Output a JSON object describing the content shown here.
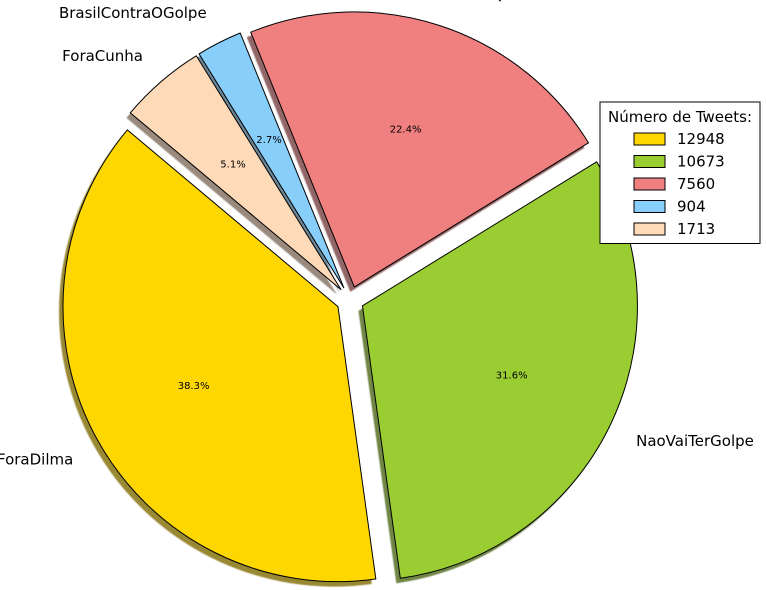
{
  "chart_data": {
    "type": "pie",
    "title": "",
    "start_angle_deg": 140,
    "direction": "counterclockwise",
    "shadow": true,
    "explode": [
      0.05,
      0.05,
      0.05,
      0.05,
      0.05
    ],
    "slices": [
      {
        "label": "ForaDilma",
        "value": 12948,
        "percent_label": "38.3%",
        "color": "#FFD700"
      },
      {
        "label": "NaoVaiTerGolpe",
        "value": 10673,
        "percent_label": "31.6%",
        "color": "#9ACD32"
      },
      {
        "label": "TchauQuerida",
        "value": 7560,
        "percent_label": "22.4%",
        "color": "#F08080"
      },
      {
        "label": "BrasilContraOGolpe",
        "value": 904,
        "percent_label": "2.7%",
        "color": "#87CEFA"
      },
      {
        "label": "ForaCunha",
        "value": 1713,
        "percent_label": "5.1%",
        "color": "#FFDAB9"
      }
    ],
    "legend": {
      "title": "Número de Tweets:",
      "placement": "top-right",
      "entries": [
        "12948",
        "10673",
        "7560",
        "904",
        "1713"
      ]
    }
  }
}
